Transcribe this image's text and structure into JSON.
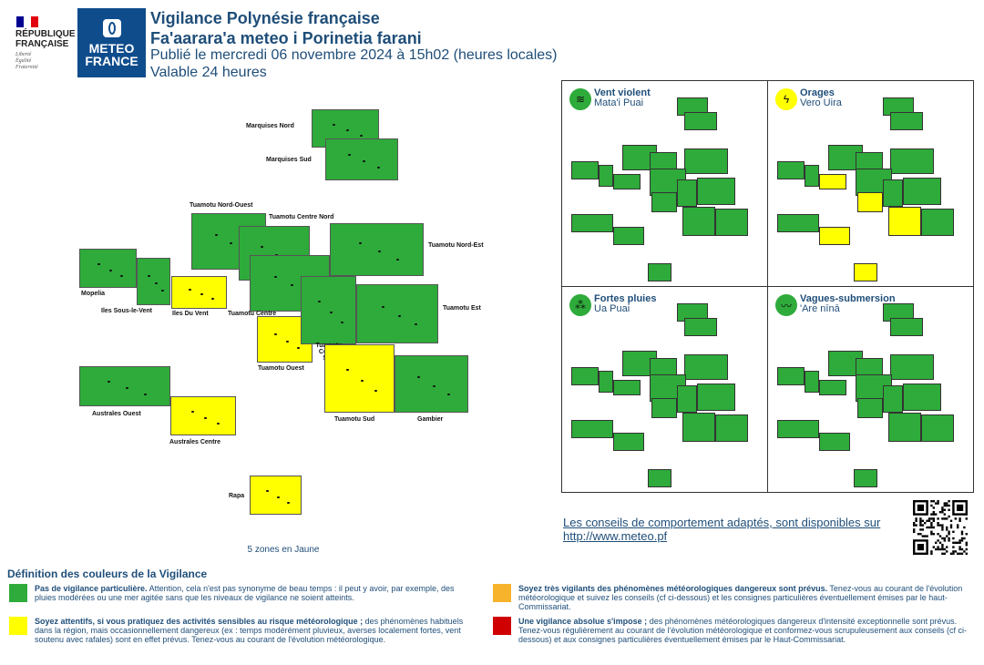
{
  "header": {
    "rf_name": "RÉPUBLIQUE\nFRANÇAISE",
    "rf_motto": "Liberté\nÉgalité\nFraternité",
    "mf_name_1": "METEO",
    "mf_name_2": "FRANCE",
    "title_1": "Vigilance Polynésie française",
    "title_2": "Fa'aarara'a meteo i Porinetia farani",
    "published": "Publié le mercredi 06 novembre 2024 à 15h02 (heures locales)",
    "validity": "Valable 24 heures"
  },
  "colors": {
    "green": "#2eab3a",
    "yellow": "#ffff00",
    "orange": "#f7b32b",
    "red": "#d00000",
    "text_blue": "#1f4e79"
  },
  "map": {
    "zones": [
      {
        "id": "marquises-nord",
        "label": "Marquises Nord",
        "level": "green"
      },
      {
        "id": "marquises-sud",
        "label": "Marquises Sud",
        "level": "green"
      },
      {
        "id": "tuamotu-nord-ouest",
        "label": "Tuamotu Nord-Ouest",
        "level": "green"
      },
      {
        "id": "tuamotu-centre-nord",
        "label": "Tuamotu Centre Nord",
        "level": "green"
      },
      {
        "id": "tuamotu-nord-est",
        "label": "Tuamotu Nord-Est",
        "level": "green"
      },
      {
        "id": "mopelia",
        "label": "Mopelia",
        "level": "green"
      },
      {
        "id": "iles-sous-le-vent",
        "label": "Iles Sous-le-Vent",
        "level": "green"
      },
      {
        "id": "iles-du-vent",
        "label": "Iles Du Vent",
        "level": "yellow"
      },
      {
        "id": "tuamotu-centre",
        "label": "Tuamotu Centre",
        "level": "green"
      },
      {
        "id": "tuamotu-est",
        "label": "Tuamotu Est",
        "level": "green"
      },
      {
        "id": "tuamotu-ouest",
        "label": "Tuamotu Ouest",
        "level": "yellow"
      },
      {
        "id": "tuamotu-centre-sud",
        "label": "Tuamotu Centre Sud",
        "level": "green"
      },
      {
        "id": "australes-ouest",
        "label": "Australes Ouest",
        "level": "green"
      },
      {
        "id": "australes-centre",
        "label": "Australes Centre",
        "level": "yellow"
      },
      {
        "id": "tuamotu-sud",
        "label": "Tuamotu Sud",
        "level": "yellow"
      },
      {
        "id": "gambier",
        "label": "Gambier",
        "level": "green"
      },
      {
        "id": "rapa",
        "label": "Rapa",
        "level": "yellow"
      }
    ],
    "summary": "5 zones en Jaune"
  },
  "panels": [
    {
      "id": "vent",
      "title": "Vent violent",
      "subtitle": "Mata'i Puai",
      "icon": "wind-icon",
      "yellow_zones": []
    },
    {
      "id": "orages",
      "title": "Orages",
      "subtitle": "Vero Uira",
      "icon": "lightning-icon",
      "yellow_zones": [
        "iles-du-vent",
        "tuamotu-ouest",
        "australes-centre",
        "tuamotu-sud",
        "rapa"
      ]
    },
    {
      "id": "pluies",
      "title": "Fortes pluies",
      "subtitle": "Ua Puai",
      "icon": "rain-icon",
      "yellow_zones": []
    },
    {
      "id": "vagues",
      "title": "Vagues-submersion",
      "subtitle": "'Are nīnā",
      "icon": "wave-icon",
      "yellow_zones": []
    }
  ],
  "footer": {
    "conseils": "Les conseils de comportement adaptés, sont disponibles sur http://www.meteo.pf",
    "def_title": "Définition des couleurs de la Vigilance",
    "legend": [
      {
        "level": "green",
        "bold": "Pas de vigilance particulière.",
        "text": " Attention, cela n'est pas synonyme de beau temps : il peut y avoir, par exemple, des pluies modérées ou une mer agitée sans que les niveaux de vigilance ne soient atteints."
      },
      {
        "level": "orange",
        "bold": "Soyez très vigilants des phénomènes météorologiques dangereux sont prévus.",
        "text": " Tenez-vous au courant de l'évolution météorologique et suivez les conseils (cf ci-dessous) et les consignes particulières éventuellement émises par le haut-Commissariat."
      },
      {
        "level": "yellow",
        "bold": "Soyez attentifs, si vous pratiquez des activités sensibles au risque météorologique ;",
        "text": " des phénomènes habituels dans la région, mais occasionnellement dangereux (ex : temps modérément pluvieux, averses localement fortes, vent soutenu avec rafales) sont en effet prévus. Tenez-vous au courant de l'évolution météorologique."
      },
      {
        "level": "red",
        "bold": "Une vigilance absolue s'impose ;",
        "text": " des phénomènes météorologiques dangereux d'intensité exceptionnelle sont prévus. Tenez-vous régulièrement au courant de l'évolution météorologique et conformez-vous scrupuleusement aux conseils (cf ci-dessous) et aux consignes particulières éventuellement émises par le Haut-Commissariat."
      }
    ]
  }
}
